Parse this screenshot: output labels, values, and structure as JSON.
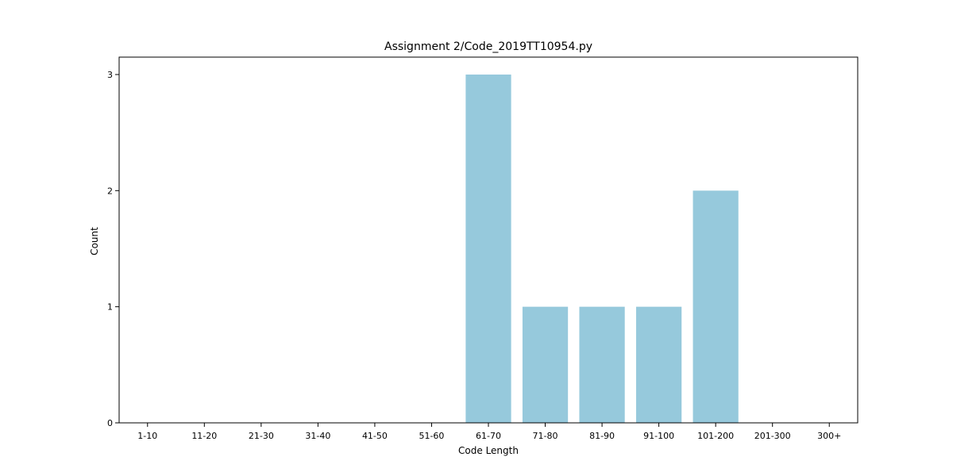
{
  "chart_data": {
    "type": "bar",
    "title": "Assignment 2/Code_2019TT10954.py",
    "xlabel": "Code Length",
    "ylabel": "Count",
    "categories": [
      "1-10",
      "11-20",
      "21-30",
      "31-40",
      "41-50",
      "51-60",
      "61-70",
      "71-80",
      "81-90",
      "91-100",
      "101-200",
      "201-300",
      "300+"
    ],
    "values": [
      0,
      0,
      0,
      0,
      0,
      0,
      3,
      1,
      1,
      1,
      2,
      0,
      0
    ],
    "ylim": [
      0,
      3.15
    ],
    "yticks": [
      0,
      1,
      2,
      3
    ],
    "grid": false,
    "bar_color": "#96c9dc"
  }
}
